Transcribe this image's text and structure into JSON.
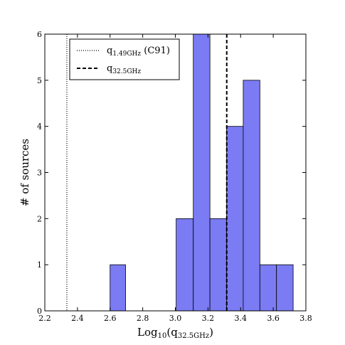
{
  "chart_data": {
    "type": "bar",
    "title": "",
    "xlabel": {
      "main": "Log",
      "sub1": "10",
      "open": "(q",
      "sub2": "32.5GHz",
      "close": ")"
    },
    "ylabel": "# of sources",
    "xlim": [
      2.2,
      3.8
    ],
    "ylim": [
      0,
      6
    ],
    "xticks": [
      "2.2",
      "2.4",
      "2.6",
      "2.8",
      "3.0",
      "3.2",
      "3.4",
      "3.6",
      "3.8"
    ],
    "yticks": [
      "0",
      "1",
      "2",
      "3",
      "4",
      "5",
      "6"
    ],
    "bins": [
      {
        "x0": 2.6,
        "x1": 2.695,
        "count": 1
      },
      {
        "x0": 3.005,
        "x1": 3.11,
        "count": 2
      },
      {
        "x0": 3.11,
        "x1": 3.212,
        "count": 6
      },
      {
        "x0": 3.212,
        "x1": 3.314,
        "count": 2
      },
      {
        "x0": 3.314,
        "x1": 3.416,
        "count": 4
      },
      {
        "x0": 3.416,
        "x1": 3.518,
        "count": 5
      },
      {
        "x0": 3.518,
        "x1": 3.62,
        "count": 1
      },
      {
        "x0": 3.62,
        "x1": 3.722,
        "count": 1
      }
    ],
    "bar_color": "#7b7bf4",
    "bar_edge_color": "#000000",
    "vlines": [
      {
        "x": 2.335,
        "style": "dotted",
        "label_main": "q",
        "label_sub": "1.49GHz",
        "label_extra": " (C91)"
      },
      {
        "x": 3.315,
        "style": "dashed",
        "label_main": "q",
        "label_sub": "32.5GHz",
        "label_extra": ""
      }
    ],
    "legend_position": "top-left",
    "grid": false
  }
}
